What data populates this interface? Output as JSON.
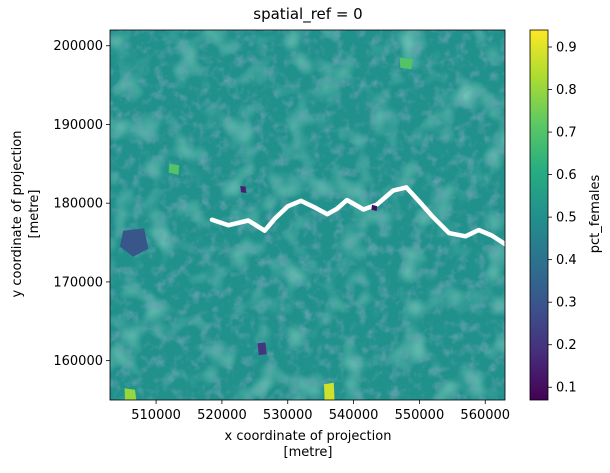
{
  "chart_data": {
    "type": "heatmap",
    "title": "spatial_ref = 0",
    "xlabel": [
      "x coordinate of projection",
      "[metre]"
    ],
    "ylabel": [
      "y coordinate of projection",
      "[metre]"
    ],
    "xlim": [
      503000,
      563000
    ],
    "ylim": [
      155000,
      202000
    ],
    "xticks": [
      510000,
      520000,
      530000,
      540000,
      550000,
      560000
    ],
    "yticks": [
      160000,
      170000,
      180000,
      190000,
      200000
    ],
    "colorbar": {
      "label": "pct_females",
      "range": [
        0.07,
        0.94
      ],
      "ticks": [
        0.1,
        0.2,
        0.3,
        0.4,
        0.5,
        0.6,
        0.7,
        0.8,
        0.9
      ],
      "colormap": "viridis"
    },
    "dominant_value": 0.5,
    "features": [
      {
        "name": "river-thames",
        "kind": "no-data",
        "points": [
          [
            518500,
            177900
          ],
          [
            521000,
            177200
          ],
          [
            524000,
            177800
          ],
          [
            526500,
            176500
          ],
          [
            528000,
            178000
          ],
          [
            530000,
            179600
          ],
          [
            532000,
            180300
          ],
          [
            534000,
            179500
          ],
          [
            536000,
            178600
          ],
          [
            537500,
            179300
          ],
          [
            539000,
            180400
          ],
          [
            541500,
            179200
          ],
          [
            543500,
            179800
          ],
          [
            546000,
            181600
          ],
          [
            548000,
            182000
          ],
          [
            550000,
            180200
          ],
          [
            552000,
            178300
          ],
          [
            554500,
            176200
          ],
          [
            557000,
            175800
          ],
          [
            559000,
            176600
          ],
          [
            561000,
            175900
          ],
          [
            563000,
            174800
          ]
        ]
      },
      {
        "name": "low-patch-west",
        "value": 0.3,
        "points": [
          [
            505000,
            176500
          ],
          [
            508200,
            176800
          ],
          [
            508800,
            174200
          ],
          [
            506500,
            173200
          ],
          [
            504500,
            174500
          ]
        ]
      },
      {
        "name": "low-patch-south",
        "value": 0.2,
        "points": [
          [
            525400,
            162200
          ],
          [
            526600,
            162300
          ],
          [
            526800,
            160800
          ],
          [
            525600,
            160700
          ]
        ]
      },
      {
        "name": "low-patch-centre",
        "value": 0.15,
        "points": [
          [
            522800,
            182200
          ],
          [
            523600,
            182100
          ],
          [
            523700,
            181300
          ],
          [
            522900,
            181400
          ]
        ]
      },
      {
        "name": "low-patch-east",
        "value": 0.1,
        "points": [
          [
            542800,
            179800
          ],
          [
            543600,
            179600
          ],
          [
            543500,
            179000
          ],
          [
            542700,
            179200
          ]
        ]
      },
      {
        "name": "high-patch-south-a",
        "value": 0.88,
        "points": [
          [
            535500,
            157000
          ],
          [
            537000,
            157200
          ],
          [
            537100,
            155000
          ],
          [
            535600,
            155000
          ]
        ]
      },
      {
        "name": "high-patch-south-b",
        "value": 0.8,
        "points": [
          [
            505200,
            156500
          ],
          [
            506800,
            156300
          ],
          [
            507000,
            155000
          ],
          [
            505300,
            155000
          ]
        ]
      },
      {
        "name": "high-patch-north-a",
        "value": 0.7,
        "points": [
          [
            512000,
            185000
          ],
          [
            513500,
            184800
          ],
          [
            513400,
            183600
          ],
          [
            511900,
            183900
          ]
        ]
      },
      {
        "name": "high-patch-north-b",
        "value": 0.7,
        "points": [
          [
            547000,
            198500
          ],
          [
            549000,
            198300
          ],
          [
            548800,
            197000
          ],
          [
            547100,
            197200
          ]
        ]
      }
    ]
  }
}
